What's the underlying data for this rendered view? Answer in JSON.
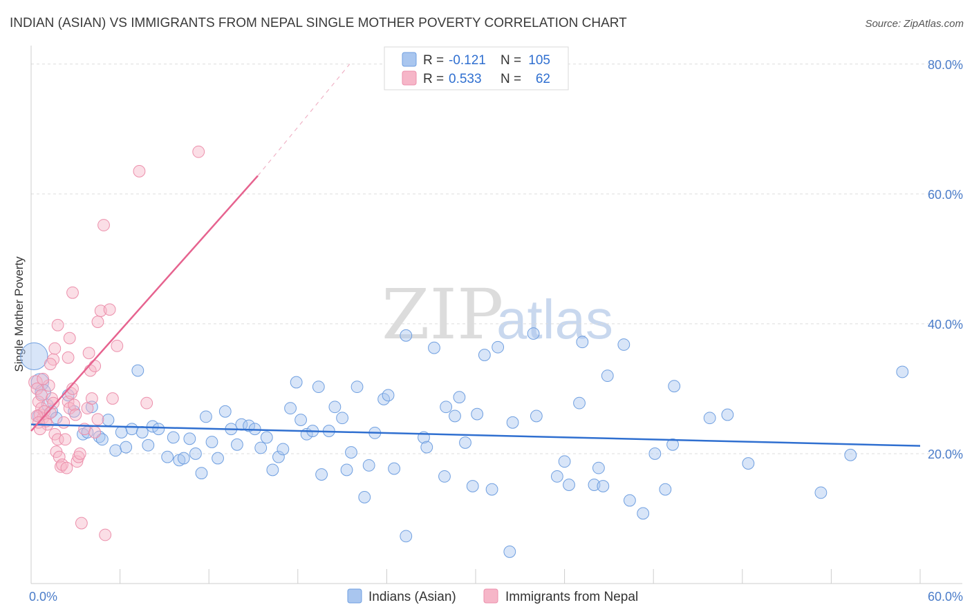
{
  "header": {
    "title": "INDIAN (ASIAN) VS IMMIGRANTS FROM NEPAL SINGLE MOTHER POVERTY CORRELATION CHART",
    "source": "Source: ZipAtlas.com"
  },
  "watermark": {
    "zip": "ZIP",
    "atlas": "atlas"
  },
  "legend": {
    "r_label": "R =",
    "n_label": "N =",
    "rows": [
      {
        "r": "-0.121",
        "n": "105",
        "color": "#a9c6ef"
      },
      {
        "r": "0.533",
        "n": "62",
        "color": "#f6b6c8"
      }
    ]
  },
  "chart_data": {
    "type": "scatter",
    "title": "INDIAN (ASIAN) VS IMMIGRANTS FROM NEPAL SINGLE MOTHER POVERTY CORRELATION CHART",
    "xlabel": "",
    "ylabel": "Single Mother Poverty",
    "xlim": [
      0,
      60
    ],
    "ylim": [
      0,
      82
    ],
    "x_tick_labels": [
      "0.0%",
      "60.0%"
    ],
    "y_ticks": [
      20,
      40,
      60,
      80
    ],
    "y_tick_labels": [
      "20.0%",
      "40.0%",
      "60.0%",
      "80.0%"
    ],
    "grid": true,
    "legend_position": "top-center",
    "series": [
      {
        "name": "Indians (Asian)",
        "color": "#a9c6ef",
        "stroke": "#6f9fe0",
        "trend": {
          "x": [
            0,
            60
          ],
          "y": [
            24.5,
            21.2
          ],
          "color": "#2f6fd0"
        },
        "points": [
          [
            0.2,
            35.0,
            14
          ],
          [
            0.6,
            31.0,
            9
          ],
          [
            0.8,
            29.5,
            8
          ],
          [
            0.5,
            25.8,
            6
          ],
          [
            1.1,
            27.5,
            6
          ],
          [
            1.4,
            26.5,
            6
          ],
          [
            1.7,
            25.5,
            6
          ],
          [
            2.5,
            29.0,
            6
          ],
          [
            2.9,
            26.5,
            6
          ],
          [
            3.5,
            23.0,
            6
          ],
          [
            3.8,
            23.3,
            6
          ],
          [
            4.1,
            27.2,
            6
          ],
          [
            4.6,
            22.6,
            6
          ],
          [
            4.8,
            22.2,
            6
          ],
          [
            5.2,
            25.2,
            6
          ],
          [
            5.7,
            20.5,
            6
          ],
          [
            6.1,
            23.3,
            6
          ],
          [
            6.4,
            21.0,
            6
          ],
          [
            6.8,
            23.8,
            6
          ],
          [
            7.2,
            32.8,
            6
          ],
          [
            7.5,
            23.3,
            6
          ],
          [
            7.9,
            21.3,
            6
          ],
          [
            8.2,
            24.2,
            6
          ],
          [
            8.6,
            23.8,
            6
          ],
          [
            9.2,
            19.5,
            6
          ],
          [
            9.6,
            22.5,
            6
          ],
          [
            10.0,
            19.0,
            6
          ],
          [
            10.3,
            19.3,
            6
          ],
          [
            10.7,
            22.3,
            6
          ],
          [
            11.1,
            20.0,
            6
          ],
          [
            11.5,
            17.0,
            6
          ],
          [
            11.8,
            25.7,
            6
          ],
          [
            12.2,
            21.8,
            6
          ],
          [
            12.6,
            19.3,
            6
          ],
          [
            13.1,
            26.5,
            6
          ],
          [
            13.5,
            23.8,
            6
          ],
          [
            13.9,
            21.4,
            6
          ],
          [
            14.2,
            24.5,
            6
          ],
          [
            14.7,
            24.3,
            6
          ],
          [
            15.1,
            23.8,
            6
          ],
          [
            15.5,
            20.9,
            6
          ],
          [
            15.9,
            22.5,
            6
          ],
          [
            16.3,
            17.5,
            6
          ],
          [
            16.7,
            19.5,
            6
          ],
          [
            17.0,
            20.7,
            6
          ],
          [
            17.5,
            27.0,
            6
          ],
          [
            17.9,
            31.0,
            6
          ],
          [
            18.2,
            25.2,
            6
          ],
          [
            18.6,
            23.0,
            6
          ],
          [
            19.0,
            23.5,
            6
          ],
          [
            19.4,
            30.3,
            6
          ],
          [
            19.6,
            16.8,
            6
          ],
          [
            20.1,
            23.5,
            6
          ],
          [
            20.5,
            27.2,
            6
          ],
          [
            21.0,
            25.5,
            6
          ],
          [
            21.3,
            17.5,
            6
          ],
          [
            21.6,
            20.2,
            6
          ],
          [
            22.0,
            30.3,
            6
          ],
          [
            22.5,
            13.3,
            6
          ],
          [
            22.8,
            18.2,
            6
          ],
          [
            23.2,
            23.2,
            6
          ],
          [
            23.8,
            28.4,
            6
          ],
          [
            24.1,
            29.0,
            6
          ],
          [
            24.5,
            17.7,
            6
          ],
          [
            25.3,
            38.2,
            6
          ],
          [
            25.3,
            7.3,
            6
          ],
          [
            26.5,
            22.5,
            6
          ],
          [
            26.7,
            21.0,
            6
          ],
          [
            27.2,
            36.3,
            6
          ],
          [
            27.9,
            16.5,
            6
          ],
          [
            28.0,
            27.2,
            6
          ],
          [
            28.6,
            25.8,
            6
          ],
          [
            28.9,
            28.7,
            6
          ],
          [
            29.3,
            21.7,
            6
          ],
          [
            29.8,
            15.0,
            6
          ],
          [
            30.1,
            26.1,
            6
          ],
          [
            30.6,
            35.2,
            6
          ],
          [
            31.1,
            14.5,
            6
          ],
          [
            31.5,
            36.4,
            6
          ],
          [
            32.3,
            4.9,
            6
          ],
          [
            32.5,
            24.8,
            6
          ],
          [
            33.9,
            38.5,
            6
          ],
          [
            34.1,
            25.8,
            6
          ],
          [
            35.5,
            16.5,
            6
          ],
          [
            36.0,
            18.8,
            6
          ],
          [
            36.3,
            15.2,
            6
          ],
          [
            37.0,
            27.8,
            6
          ],
          [
            37.2,
            37.2,
            6
          ],
          [
            38.0,
            15.2,
            6
          ],
          [
            38.3,
            17.8,
            6
          ],
          [
            38.6,
            15.0,
            6
          ],
          [
            38.9,
            32.0,
            6
          ],
          [
            40.0,
            36.8,
            6
          ],
          [
            40.4,
            12.8,
            6
          ],
          [
            41.3,
            10.8,
            6
          ],
          [
            42.1,
            20.0,
            6
          ],
          [
            42.8,
            14.5,
            6
          ],
          [
            43.3,
            21.4,
            6
          ],
          [
            43.4,
            30.4,
            6
          ],
          [
            45.8,
            25.5,
            6
          ],
          [
            47.0,
            26.0,
            6
          ],
          [
            48.4,
            18.5,
            6
          ],
          [
            53.3,
            14.0,
            6
          ],
          [
            55.3,
            19.8,
            6
          ],
          [
            58.8,
            32.6,
            6
          ]
        ]
      },
      {
        "name": "Immigrants from Nepal",
        "color": "#f6b6c8",
        "stroke": "#ec8fab",
        "trend": {
          "x": [
            0,
            15.3
          ],
          "y": [
            23.5,
            62.8
          ],
          "color": "#e6638f"
        },
        "trend_extension": {
          "x": [
            15.3,
            21.5
          ],
          "y": [
            62.8,
            80.0
          ]
        },
        "points": [
          [
            0.3,
            31.0,
            7
          ],
          [
            0.4,
            30.0,
            6
          ],
          [
            0.5,
            28.0,
            6
          ],
          [
            0.6,
            26.0,
            6
          ],
          [
            0.7,
            27.0,
            6
          ],
          [
            0.8,
            25.5,
            6
          ],
          [
            0.9,
            26.5,
            6
          ],
          [
            1.0,
            25.0,
            6
          ],
          [
            1.1,
            24.5,
            6
          ],
          [
            1.2,
            30.5,
            6
          ],
          [
            0.4,
            25.8,
            6
          ],
          [
            0.5,
            24.8,
            6
          ],
          [
            0.6,
            23.8,
            6
          ],
          [
            0.7,
            29.0,
            6
          ],
          [
            0.8,
            31.5,
            6
          ],
          [
            1.3,
            26.3,
            6
          ],
          [
            1.4,
            28.5,
            6
          ],
          [
            1.5,
            27.8,
            6
          ],
          [
            1.6,
            23.0,
            6
          ],
          [
            1.7,
            20.3,
            6
          ],
          [
            1.8,
            22.2,
            6
          ],
          [
            1.9,
            19.5,
            6
          ],
          [
            2.0,
            18.0,
            6
          ],
          [
            2.1,
            18.3,
            6
          ],
          [
            2.2,
            24.8,
            6
          ],
          [
            2.3,
            22.2,
            6
          ],
          [
            2.4,
            17.8,
            6
          ],
          [
            2.5,
            28.0,
            6
          ],
          [
            2.6,
            27.0,
            6
          ],
          [
            2.7,
            29.3,
            6
          ],
          [
            2.8,
            30.0,
            6
          ],
          [
            2.9,
            27.5,
            6
          ],
          [
            3.0,
            26.0,
            6
          ],
          [
            3.1,
            18.8,
            6
          ],
          [
            3.2,
            19.5,
            6
          ],
          [
            3.3,
            20.0,
            6
          ],
          [
            3.4,
            9.3,
            6
          ],
          [
            3.6,
            23.8,
            6
          ],
          [
            3.8,
            27.0,
            6
          ],
          [
            3.9,
            35.5,
            6
          ],
          [
            4.0,
            32.8,
            6
          ],
          [
            4.1,
            28.5,
            6
          ],
          [
            4.3,
            23.3,
            6
          ],
          [
            4.5,
            25.3,
            6
          ],
          [
            1.5,
            34.5,
            6
          ],
          [
            1.6,
            36.2,
            6
          ],
          [
            1.8,
            39.8,
            6
          ],
          [
            2.5,
            34.8,
            6
          ],
          [
            2.6,
            37.8,
            6
          ],
          [
            2.8,
            44.8,
            6
          ],
          [
            4.3,
            33.5,
            6
          ],
          [
            4.5,
            40.3,
            6
          ],
          [
            4.7,
            42.0,
            6
          ],
          [
            5.0,
            7.5,
            6
          ],
          [
            4.9,
            55.2,
            6
          ],
          [
            5.3,
            42.2,
            6
          ],
          [
            5.5,
            28.5,
            6
          ],
          [
            5.8,
            36.6,
            6
          ],
          [
            7.3,
            63.5,
            6
          ],
          [
            7.8,
            27.8,
            6
          ],
          [
            11.3,
            66.5,
            6
          ],
          [
            1.3,
            33.8,
            6
          ]
        ]
      }
    ]
  },
  "bottom_legend": {
    "items": [
      {
        "label": "Indians (Asian)",
        "color": "#a9c6ef"
      },
      {
        "label": "Immigrants from Nepal",
        "color": "#f6b6c8"
      }
    ]
  }
}
